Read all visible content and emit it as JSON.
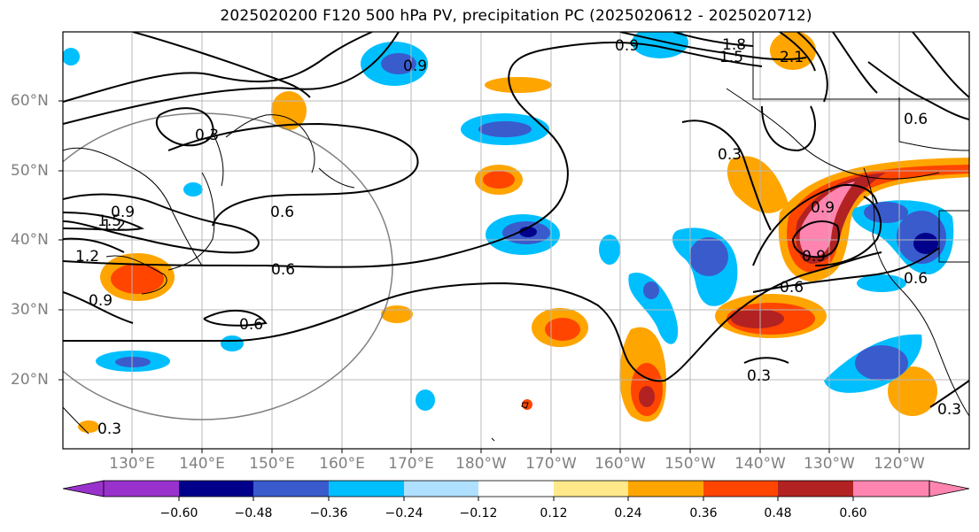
{
  "title": "2025020200 F120 500 hPa PV, precipitation PC (2025020612 - 2025020712)",
  "lat_labels": [
    "60°N",
    "50°N",
    "40°N",
    "30°N",
    "20°N"
  ],
  "lon_labels": [
    "130°E",
    "140°E",
    "150°E",
    "160°E",
    "170°E",
    "180°W",
    "170°W",
    "160°W",
    "150°W",
    "140°W",
    "130°W",
    "120°W"
  ],
  "contour_labels": [
    "0.9",
    "1.8",
    "1.5",
    "2.1",
    "0.9",
    "0.3",
    "0.6",
    "0.3",
    "0.6",
    "0.6",
    "0.9",
    "1.2",
    "0.9",
    "1.5",
    "1.2",
    "0.6",
    "0.9",
    "0.6",
    "0.3",
    "0.3",
    "0.6",
    "0.3",
    "0.9"
  ],
  "colorbar": {
    "ticks": [
      "−0.60",
      "−0.48",
      "−0.36",
      "−0.24",
      "−0.12",
      "0.12",
      "0.24",
      "0.36",
      "0.48",
      "0.60"
    ],
    "colors": [
      "#9932cc",
      "#00008b",
      "#3a5bcc",
      "#00bfff",
      "#b0e0ff",
      "#ffffff",
      "#ffe98a",
      "#ffa500",
      "#ff4500",
      "#b22222",
      "#ff85b0"
    ]
  }
}
